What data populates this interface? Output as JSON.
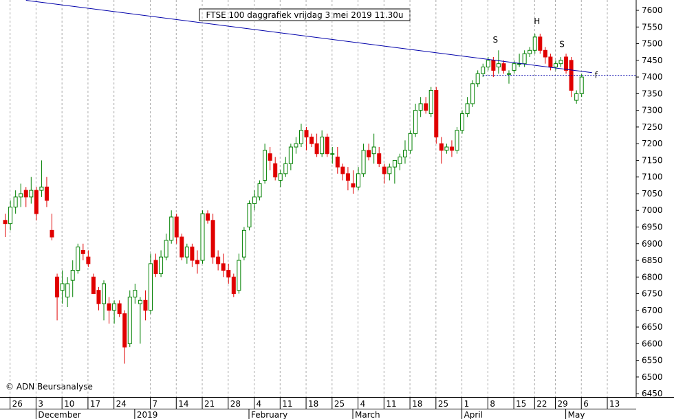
{
  "chart_data": {
    "type": "candlestick",
    "title": "FTSE 100 daggrafiek vrijdag 3 mei 2019 11.30u",
    "credit": "© ADN Beursanalyse",
    "up_color": "#008000",
    "down_color": "#e00000",
    "x": [
      0,
      1,
      2,
      3,
      4,
      5,
      6,
      7,
      8,
      9,
      10,
      11,
      12,
      13,
      14,
      15,
      16,
      17,
      18,
      19,
      20,
      21,
      22,
      23,
      24,
      25,
      26,
      27,
      28,
      29,
      30,
      31,
      32,
      33,
      34,
      35,
      36,
      37,
      38,
      39,
      40,
      41,
      42,
      43,
      44,
      45,
      46,
      47,
      48,
      49,
      50,
      51,
      52,
      53,
      54,
      55,
      56,
      57,
      58,
      59,
      60,
      61,
      62,
      63,
      64,
      65,
      66,
      67,
      68,
      69,
      70,
      71,
      72,
      73,
      74,
      75,
      76,
      77,
      78,
      79,
      80,
      81,
      82,
      83,
      84,
      85,
      86,
      87,
      88,
      89,
      90,
      91,
      92,
      93,
      94,
      95,
      96,
      97,
      98,
      99,
      100,
      101,
      102,
      103,
      104,
      105,
      106,
      107,
      108,
      109,
      110,
      111
    ],
    "ohlc": [
      [
        6970,
        6990,
        6920,
        6960
      ],
      [
        6960,
        7030,
        6940,
        7010
      ],
      [
        7010,
        7060,
        6990,
        7040
      ],
      [
        7040,
        7080,
        7010,
        7050
      ],
      [
        7060,
        7070,
        7010,
        7040
      ],
      [
        7040,
        7100,
        7020,
        7060
      ],
      [
        7060,
        7070,
        6970,
        6990
      ],
      [
        7060,
        7150,
        7040,
        7070
      ],
      [
        7070,
        7100,
        7010,
        7030
      ],
      [
        6940,
        6990,
        6910,
        6920
      ],
      [
        6800,
        6810,
        6670,
        6740
      ],
      [
        6760,
        6820,
        6720,
        6780
      ],
      [
        6740,
        6800,
        6710,
        6780
      ],
      [
        6790,
        6850,
        6740,
        6820
      ],
      [
        6820,
        6900,
        6810,
        6890
      ],
      [
        6880,
        6900,
        6850,
        6870
      ],
      [
        6860,
        6880,
        6830,
        6840
      ],
      [
        6800,
        6810,
        6750,
        6750
      ],
      [
        6760,
        6770,
        6700,
        6720
      ],
      [
        6720,
        6790,
        6670,
        6780
      ],
      [
        6720,
        6740,
        6660,
        6700
      ],
      [
        6700,
        6730,
        6660,
        6720
      ],
      [
        6720,
        6730,
        6680,
        6690
      ],
      [
        6690,
        6700,
        6540,
        6590
      ],
      [
        6600,
        6760,
        6590,
        6740
      ],
      [
        6740,
        6780,
        6720,
        6760
      ],
      [
        6720,
        6740,
        6600,
        6730
      ],
      [
        6730,
        6760,
        6670,
        6700
      ],
      [
        6700,
        6870,
        6690,
        6840
      ],
      [
        6850,
        6870,
        6800,
        6810
      ],
      [
        6810,
        6880,
        6800,
        6860
      ],
      [
        6860,
        6930,
        6850,
        6910
      ],
      [
        6910,
        7000,
        6900,
        6980
      ],
      [
        6980,
        6990,
        6900,
        6920
      ],
      [
        6920,
        6930,
        6850,
        6860
      ],
      [
        6860,
        6900,
        6840,
        6890
      ],
      [
        6890,
        6900,
        6830,
        6850
      ],
      [
        6850,
        6880,
        6810,
        6840
      ],
      [
        6850,
        7000,
        6840,
        6990
      ],
      [
        6990,
        7000,
        6960,
        6970
      ],
      [
        6970,
        6990,
        6840,
        6860
      ],
      [
        6860,
        6880,
        6820,
        6840
      ],
      [
        6840,
        6870,
        6800,
        6820
      ],
      [
        6820,
        6840,
        6780,
        6800
      ],
      [
        6800,
        6810,
        6740,
        6750
      ],
      [
        6760,
        6870,
        6750,
        6850
      ],
      [
        6860,
        6950,
        6850,
        6940
      ],
      [
        6950,
        7030,
        6940,
        7020
      ],
      [
        7020,
        7060,
        7000,
        7040
      ],
      [
        7040,
        7090,
        7030,
        7080
      ],
      [
        7090,
        7200,
        7080,
        7180
      ],
      [
        7170,
        7190,
        7120,
        7150
      ],
      [
        7140,
        7160,
        7090,
        7100
      ],
      [
        7090,
        7120,
        7070,
        7110
      ],
      [
        7110,
        7160,
        7100,
        7140
      ],
      [
        7140,
        7200,
        7120,
        7190
      ],
      [
        7190,
        7220,
        7170,
        7200
      ],
      [
        7200,
        7260,
        7190,
        7240
      ],
      [
        7240,
        7250,
        7180,
        7220
      ],
      [
        7220,
        7230,
        7190,
        7200
      ],
      [
        7200,
        7230,
        7160,
        7170
      ],
      [
        7170,
        7240,
        7160,
        7220
      ],
      [
        7220,
        7230,
        7160,
        7170
      ],
      [
        7170,
        7190,
        7140,
        7170
      ],
      [
        7160,
        7190,
        7110,
        7130
      ],
      [
        7130,
        7140,
        7090,
        7110
      ],
      [
        7110,
        7130,
        7060,
        7090
      ],
      [
        7080,
        7120,
        7050,
        7070
      ],
      [
        7070,
        7130,
        7060,
        7110
      ],
      [
        7110,
        7200,
        7100,
        7180
      ],
      [
        7180,
        7200,
        7150,
        7160
      ],
      [
        7170,
        7230,
        7140,
        7190
      ],
      [
        7170,
        7190,
        7130,
        7140
      ],
      [
        7130,
        7140,
        7080,
        7110
      ],
      [
        7110,
        7140,
        7090,
        7130
      ],
      [
        7130,
        7150,
        7080,
        7150
      ],
      [
        7140,
        7170,
        7120,
        7160
      ],
      [
        7160,
        7210,
        7140,
        7180
      ],
      [
        7180,
        7240,
        7170,
        7230
      ],
      [
        7230,
        7320,
        7220,
        7300
      ],
      [
        7300,
        7340,
        7280,
        7320
      ],
      [
        7320,
        7340,
        7290,
        7300
      ],
      [
        7290,
        7370,
        7280,
        7360
      ],
      [
        7360,
        7370,
        7200,
        7220
      ],
      [
        7200,
        7220,
        7140,
        7180
      ],
      [
        7180,
        7200,
        7170,
        7190
      ],
      [
        7190,
        7210,
        7160,
        7180
      ],
      [
        7180,
        7250,
        7170,
        7240
      ],
      [
        7240,
        7300,
        7230,
        7290
      ],
      [
        7290,
        7340,
        7280,
        7320
      ],
      [
        7320,
        7390,
        7310,
        7380
      ],
      [
        7380,
        7420,
        7370,
        7410
      ],
      [
        7410,
        7440,
        7400,
        7430
      ],
      [
        7430,
        7460,
        7420,
        7450
      ],
      [
        7450,
        7460,
        7400,
        7420
      ],
      [
        7430,
        7480,
        7410,
        7440
      ],
      [
        7440,
        7450,
        7410,
        7420
      ],
      [
        7410,
        7420,
        7380,
        7410
      ],
      [
        7420,
        7450,
        7410,
        7440
      ],
      [
        7440,
        7470,
        7430,
        7440
      ],
      [
        7440,
        7480,
        7430,
        7470
      ],
      [
        7470,
        7490,
        7460,
        7480
      ],
      [
        7480,
        7530,
        7470,
        7520
      ],
      [
        7520,
        7530,
        7470,
        7480
      ],
      [
        7480,
        7490,
        7440,
        7460
      ],
      [
        7460,
        7470,
        7420,
        7430
      ],
      [
        7430,
        7450,
        7420,
        7440
      ],
      [
        7440,
        7460,
        7430,
        7450
      ],
      [
        7460,
        7470,
        7410,
        7420
      ],
      [
        7450,
        7460,
        7340,
        7360
      ],
      [
        7330,
        7360,
        7320,
        7350
      ],
      [
        7350,
        7410,
        7340,
        7400
      ]
    ],
    "xlim": [
      -1,
      121.5
    ],
    "ylim": [
      6440,
      7631
    ],
    "yticks": [
      6450,
      6500,
      6550,
      6600,
      6650,
      6700,
      6750,
      6800,
      6850,
      6900,
      6950,
      7000,
      7050,
      7100,
      7150,
      7200,
      7250,
      7300,
      7350,
      7400,
      7450,
      7500,
      7550,
      7600
    ],
    "xticks": [
      {
        "value": 2,
        "label": "26"
      },
      {
        "value": 7,
        "label": "3"
      },
      {
        "value": 12,
        "label": "10"
      },
      {
        "value": 17,
        "label": "17"
      },
      {
        "value": 22,
        "label": "24"
      },
      {
        "value": 29,
        "label": "7"
      },
      {
        "value": 34,
        "label": "14"
      },
      {
        "value": 39,
        "label": "21"
      },
      {
        "value": 44,
        "label": "28"
      },
      {
        "value": 49,
        "label": "4"
      },
      {
        "value": 54,
        "label": "11"
      },
      {
        "value": 59,
        "label": "18"
      },
      {
        "value": 64,
        "label": "25"
      },
      {
        "value": 69,
        "label": "4"
      },
      {
        "value": 74,
        "label": "11"
      },
      {
        "value": 79,
        "label": "18"
      },
      {
        "value": 84,
        "label": "25"
      },
      {
        "value": 89,
        "label": "1"
      },
      {
        "value": 94,
        "label": "8"
      },
      {
        "value": 99,
        "label": "15"
      },
      {
        "value": 103,
        "label": "22"
      },
      {
        "value": 107,
        "label": "29"
      },
      {
        "value": 112,
        "label": "6"
      },
      {
        "value": 117,
        "label": "13"
      }
    ],
    "month_ticks": [
      {
        "value": 7,
        "label": "December"
      },
      {
        "value": 26,
        "label": "2019"
      },
      {
        "value": 48,
        "label": "February"
      },
      {
        "value": 68,
        "label": "March"
      },
      {
        "value": 89,
        "label": "April"
      },
      {
        "value": 109,
        "label": "May"
      }
    ],
    "trendline": {
      "color": "#0000aa",
      "x": [
        4,
        113
      ],
      "y": [
        7630,
        7413
      ]
    },
    "level": {
      "color": "#0000aa",
      "x": [
        92,
        121.5
      ],
      "value": 7405,
      "label": "f"
    },
    "annotations": [
      {
        "text": "S",
        "x": 94.4,
        "y": 7503
      },
      {
        "text": "H",
        "x": 102.4,
        "y": 7559
      },
      {
        "text": "S",
        "x": 107.2,
        "y": 7490
      }
    ]
  }
}
